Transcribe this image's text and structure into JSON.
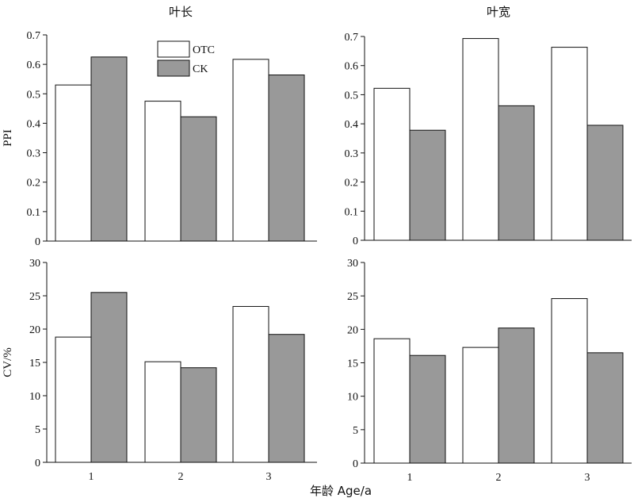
{
  "chart_data": [
    {
      "type": "bar",
      "column_title": "叶长",
      "ylabel": "PPI",
      "ylim": [
        0,
        0.7
      ],
      "yticks": [
        "0",
        "0.1",
        "0.2",
        "0.3",
        "0.4",
        "0.5",
        "0.6",
        "0.7"
      ],
      "categories": [
        "",
        "",
        ""
      ],
      "series": [
        {
          "name": "OTC",
          "color": "#ffffff",
          "values": [
            0.53,
            0.475,
            0.617
          ]
        },
        {
          "name": "CK",
          "color": "#999999",
          "values": [
            0.625,
            0.422,
            0.564
          ]
        }
      ],
      "legend_placement": "top-center"
    },
    {
      "type": "bar",
      "column_title": "叶宽",
      "ylabel": "",
      "ylim": [
        0,
        0.7
      ],
      "yticks": [
        "0",
        "0.1",
        "0.2",
        "0.3",
        "0.4",
        "0.5",
        "0.6",
        "0.7"
      ],
      "categories": [
        "",
        "",
        ""
      ],
      "series": [
        {
          "name": "OTC",
          "color": "#ffffff",
          "values": [
            0.522,
            0.693,
            0.663
          ]
        },
        {
          "name": "CK",
          "color": "#999999",
          "values": [
            0.378,
            0.462,
            0.395
          ]
        }
      ]
    },
    {
      "type": "bar",
      "ylabel": "CV/%",
      "ylim": [
        0,
        30
      ],
      "yticks": [
        "0",
        "5",
        "10",
        "15",
        "20",
        "25",
        "30"
      ],
      "categories": [
        "1",
        "2",
        "3"
      ],
      "series": [
        {
          "name": "OTC",
          "color": "#ffffff",
          "values": [
            18.8,
            15.1,
            23.4
          ]
        },
        {
          "name": "CK",
          "color": "#999999",
          "values": [
            25.5,
            14.2,
            19.2
          ]
        }
      ]
    },
    {
      "type": "bar",
      "ylabel": "",
      "ylim": [
        0,
        30
      ],
      "yticks": [
        "0",
        "5",
        "10",
        "15",
        "20",
        "25",
        "30"
      ],
      "categories": [
        "1",
        "2",
        "3"
      ],
      "series": [
        {
          "name": "OTC",
          "color": "#ffffff",
          "values": [
            18.6,
            17.3,
            24.6
          ]
        },
        {
          "name": "CK",
          "color": "#999999",
          "values": [
            16.1,
            20.2,
            16.5
          ]
        }
      ]
    }
  ],
  "xlabel": "年龄 Age/a",
  "legend": [
    {
      "label": "OTC",
      "color": "#ffffff"
    },
    {
      "label": "CK",
      "color": "#999999"
    }
  ]
}
